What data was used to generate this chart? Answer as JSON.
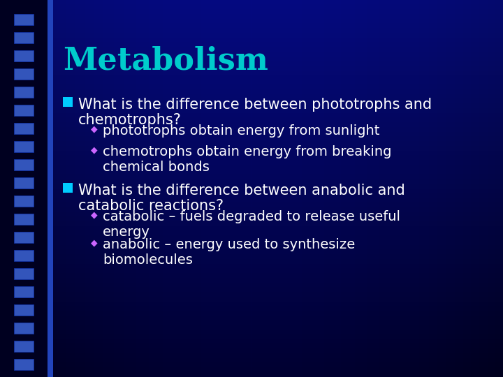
{
  "title": "Metabolism",
  "title_color": "#00CCCC",
  "title_fontsize": 32,
  "body_color": "#FFFFFF",
  "body_fontsize": 15,
  "sub_fontsize": 14,
  "bullet_color": "#00CCFF",
  "sub_bullet_color": "#CC66FF",
  "bullet1_line1": "What is the difference between phototrophs and",
  "bullet1_line2": "chemotrophs?",
  "sub1_1": "phototrophs obtain energy from sunlight",
  "sub1_2_line1": "chemotrophs obtain energy from breaking",
  "sub1_2_line2": "chemical bonds",
  "bullet2_line1": "What is the difference between anabolic and",
  "bullet2_line2": "catabolic reactions?",
  "sub2_1_line1": "catabolic – fuels degraded to release useful",
  "sub2_1_line2": "energy",
  "sub2_2_line1": "anabolic – energy used to synthesize",
  "sub2_2_line2": "biomolecules"
}
